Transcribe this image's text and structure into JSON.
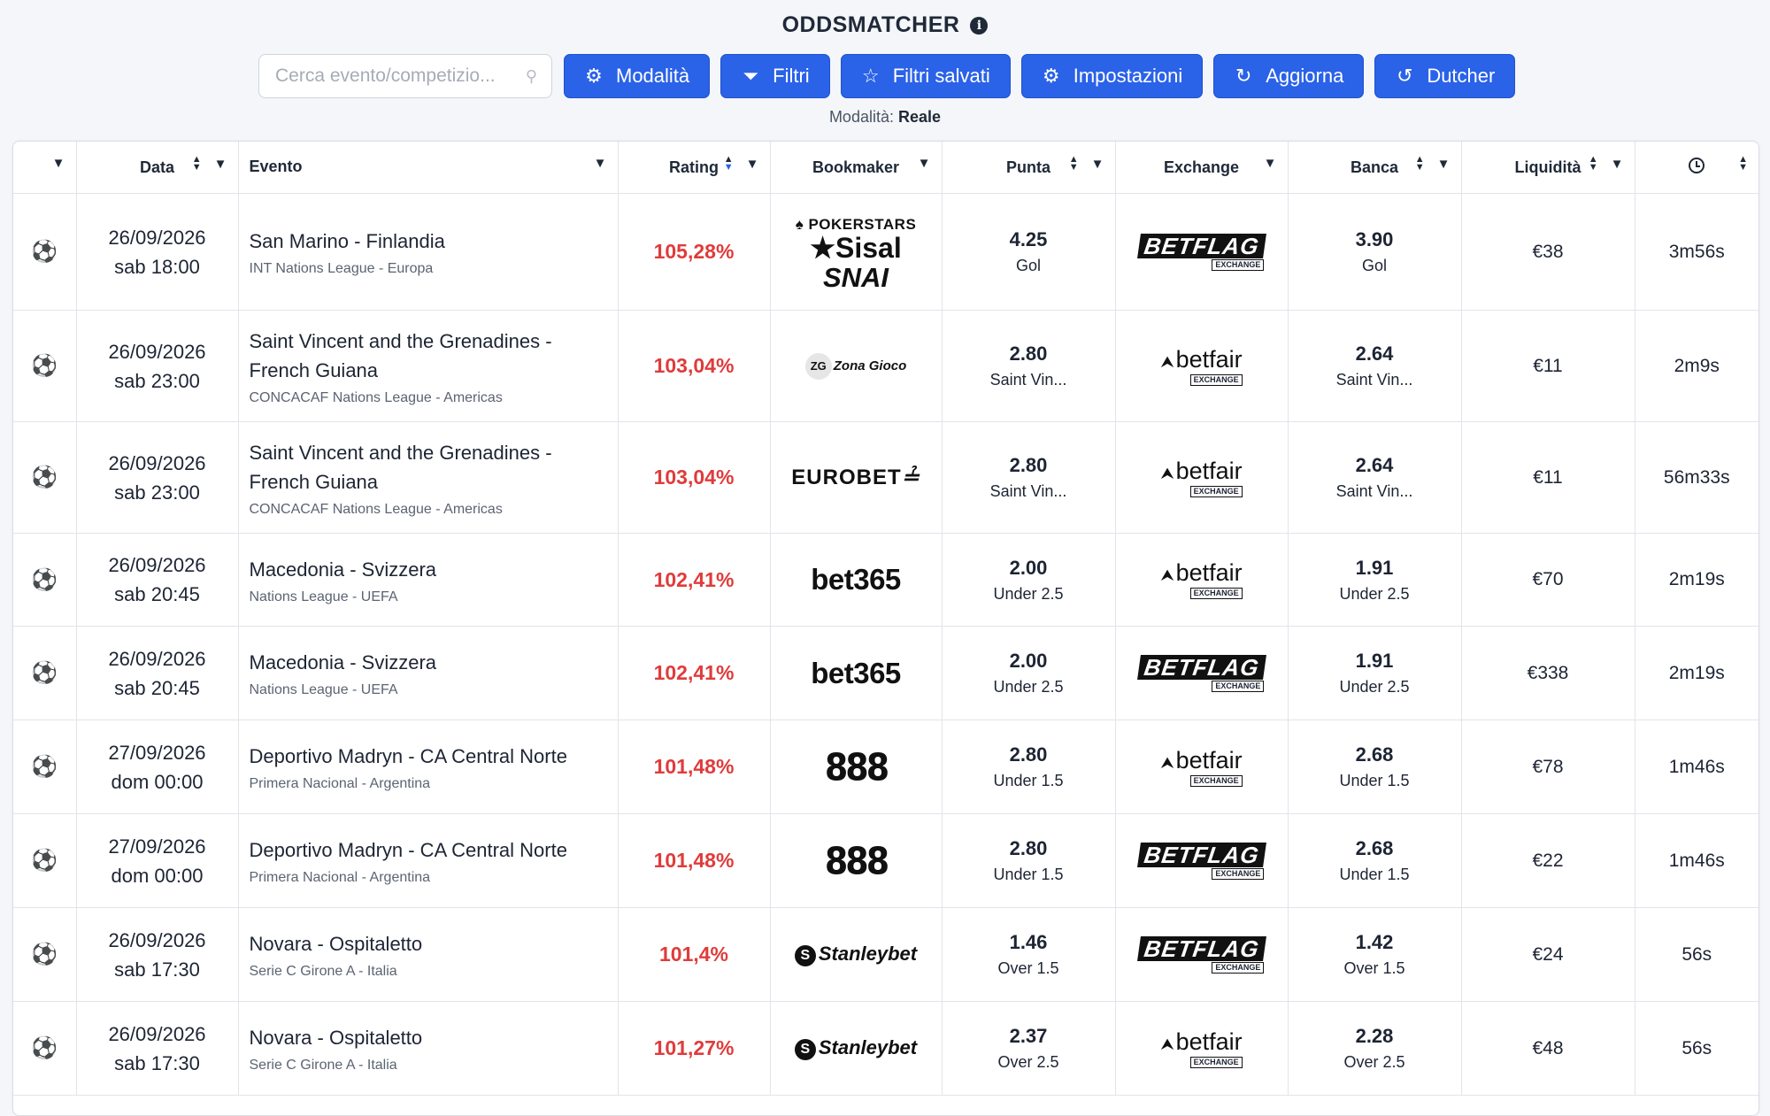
{
  "header": {
    "title": "ODDSMATCHER",
    "info_icon": "info-icon"
  },
  "search": {
    "placeholder": "Cerca evento/competizio..."
  },
  "toolbar": {
    "modalita": "Modalità",
    "filtri": "Filtri",
    "filtri_salvati": "Filtri salvati",
    "impostazioni": "Impostazioni",
    "aggiorna": "Aggiorna",
    "dutcher": "Dutcher"
  },
  "mode": {
    "label": "Modalità:",
    "value": "Reale"
  },
  "colors": {
    "accent": "#2a62e8",
    "rating": "#e03b3b"
  },
  "columns": {
    "data": "Data",
    "evento": "Evento",
    "rating": "Rating",
    "bookmaker": "Bookmaker",
    "punta": "Punta",
    "exchange": "Exchange",
    "banca": "Banca",
    "liquidita": "Liquidità"
  },
  "rows": [
    {
      "date": "26/09/2026",
      "time": "sab 18:00",
      "event": "San Marino - Finlandia",
      "competition": "INT Nations League - Europa",
      "rating": "105,28%",
      "bookmaker": [
        "POKERSTARS",
        "Sisal",
        "SNAI"
      ],
      "punta_odd": "4.25",
      "punta_mkt": "Gol",
      "exchange": "BETFLAG",
      "banca_odd": "3.90",
      "banca_mkt": "Gol",
      "liquidity": "€38",
      "elapsed": "3m56s"
    },
    {
      "date": "26/09/2026",
      "time": "sab 23:00",
      "event": "Saint Vincent and the Grenadines - French Guiana",
      "competition": "CONCACAF Nations League - Americas",
      "rating": "103,04%",
      "bookmaker": [
        "Zona Gioco"
      ],
      "punta_odd": "2.80",
      "punta_mkt": "Saint Vin...",
      "exchange": "betfair",
      "banca_odd": "2.64",
      "banca_mkt": "Saint Vin...",
      "liquidity": "€11",
      "elapsed": "2m9s"
    },
    {
      "date": "26/09/2026",
      "time": "sab 23:00",
      "event": "Saint Vincent and the Grenadines - French Guiana",
      "competition": "CONCACAF Nations League - Americas",
      "rating": "103,04%",
      "bookmaker": [
        "EUROBET"
      ],
      "punta_odd": "2.80",
      "punta_mkt": "Saint Vin...",
      "exchange": "betfair",
      "banca_odd": "2.64",
      "banca_mkt": "Saint Vin...",
      "liquidity": "€11",
      "elapsed": "56m33s"
    },
    {
      "date": "26/09/2026",
      "time": "sab 20:45",
      "event": "Macedonia - Svizzera",
      "competition": "Nations League - UEFA",
      "rating": "102,41%",
      "bookmaker": [
        "bet365"
      ],
      "punta_odd": "2.00",
      "punta_mkt": "Under 2.5",
      "exchange": "betfair",
      "banca_odd": "1.91",
      "banca_mkt": "Under 2.5",
      "liquidity": "€70",
      "elapsed": "2m19s"
    },
    {
      "date": "26/09/2026",
      "time": "sab 20:45",
      "event": "Macedonia - Svizzera",
      "competition": "Nations League - UEFA",
      "rating": "102,41%",
      "bookmaker": [
        "bet365"
      ],
      "punta_odd": "2.00",
      "punta_mkt": "Under 2.5",
      "exchange": "BETFLAG",
      "banca_odd": "1.91",
      "banca_mkt": "Under 2.5",
      "liquidity": "€338",
      "elapsed": "2m19s"
    },
    {
      "date": "27/09/2026",
      "time": "dom 00:00",
      "event": "Deportivo Madryn - CA Central Norte",
      "competition": "Primera Nacional - Argentina",
      "rating": "101,48%",
      "bookmaker": [
        "888"
      ],
      "punta_odd": "2.80",
      "punta_mkt": "Under 1.5",
      "exchange": "betfair",
      "banca_odd": "2.68",
      "banca_mkt": "Under 1.5",
      "liquidity": "€78",
      "elapsed": "1m46s"
    },
    {
      "date": "27/09/2026",
      "time": "dom 00:00",
      "event": "Deportivo Madryn - CA Central Norte",
      "competition": "Primera Nacional - Argentina",
      "rating": "101,48%",
      "bookmaker": [
        "888"
      ],
      "punta_odd": "2.80",
      "punta_mkt": "Under 1.5",
      "exchange": "BETFLAG",
      "banca_odd": "2.68",
      "banca_mkt": "Under 1.5",
      "liquidity": "€22",
      "elapsed": "1m46s"
    },
    {
      "date": "26/09/2026",
      "time": "sab 17:30",
      "event": "Novara - Ospitaletto",
      "competition": "Serie C Girone A - Italia",
      "rating": "101,4%",
      "bookmaker": [
        "Stanleybet"
      ],
      "punta_odd": "1.46",
      "punta_mkt": "Over 1.5",
      "exchange": "BETFLAG",
      "banca_odd": "1.42",
      "banca_mkt": "Over 1.5",
      "liquidity": "€24",
      "elapsed": "56s"
    },
    {
      "date": "26/09/2026",
      "time": "sab 17:30",
      "event": "Novara - Ospitaletto",
      "competition": "Serie C Girone A - Italia",
      "rating": "101,27%",
      "bookmaker": [
        "Stanleybet"
      ],
      "punta_odd": "2.37",
      "punta_mkt": "Over 2.5",
      "exchange": "betfair",
      "banca_odd": "2.28",
      "banca_mkt": "Over 2.5",
      "liquidity": "€48",
      "elapsed": "56s"
    }
  ]
}
